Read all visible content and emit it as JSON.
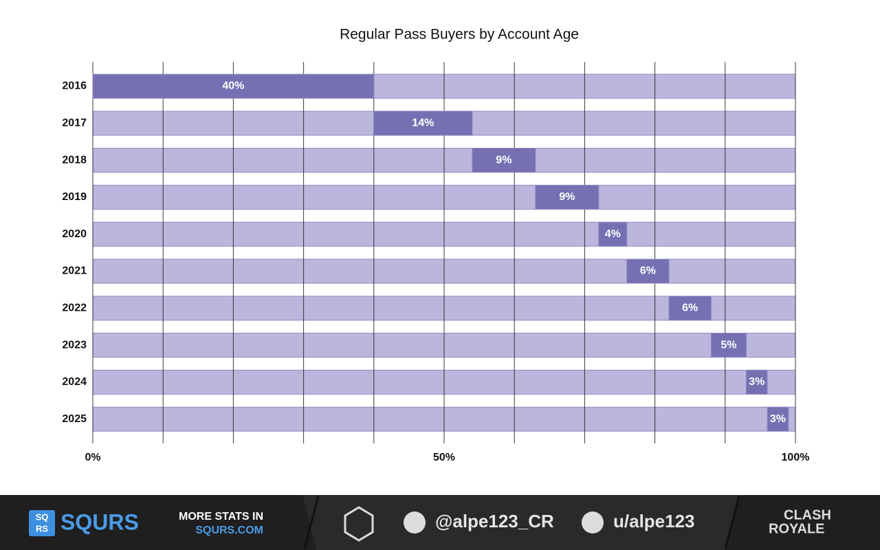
{
  "chart_data": {
    "type": "offset_bar",
    "title": "Regular Pass Buyers by Account Age",
    "categories": [
      "2016",
      "2017",
      "2018",
      "2019",
      "2020",
      "2021",
      "2022",
      "2023",
      "2024",
      "2025"
    ],
    "values": [
      40,
      14,
      9,
      9,
      4,
      6,
      6,
      5,
      3,
      3
    ],
    "value_labels": [
      "40%",
      "14%",
      "9%",
      "9%",
      "4%",
      "6%",
      "6%",
      "5%",
      "3%",
      "3%"
    ],
    "color": "#7670b3",
    "track_color": "#bab6dc",
    "xlim": [
      0,
      100
    ],
    "xticks": [
      {
        "value": 0,
        "label": "0%"
      },
      {
        "value": 10,
        "label": null
      },
      {
        "value": 20,
        "label": null
      },
      {
        "value": 30,
        "label": null
      },
      {
        "value": 40,
        "label": null
      },
      {
        "value": 50,
        "label": "50%"
      },
      {
        "value": 60,
        "label": null
      },
      {
        "value": 70,
        "label": null
      },
      {
        "value": 80,
        "label": null
      },
      {
        "value": 90,
        "label": null
      },
      {
        "value": 100,
        "label": "100%"
      }
    ],
    "grid": true
  },
  "footer": {
    "brand": "SQURS",
    "logo_top": "SQ",
    "logo_bottom": "RS",
    "promo": "MORE STATS IN",
    "site": "SQURS.COM",
    "twitter": "@alpe123_CR",
    "reddit": "u/alpe123",
    "game_top": "CLASH",
    "game_bottom": "ROYALE"
  }
}
